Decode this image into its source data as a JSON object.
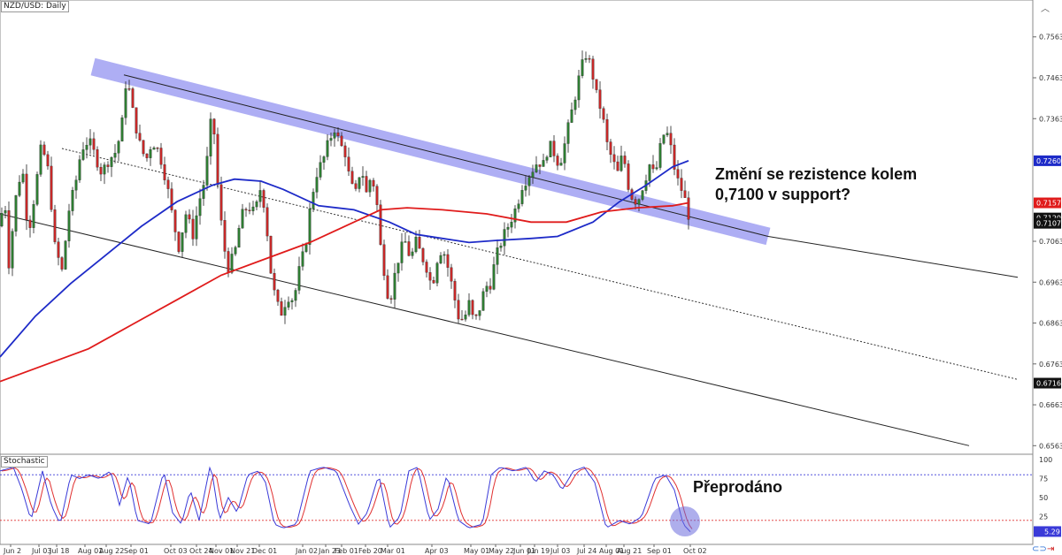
{
  "symbol_label": "NZD/USD: Daily",
  "stochastic_label": "Stochastic",
  "annotation_main": [
    "Změní se rezistence kolem",
    "0,7100 v support?"
  ],
  "annotation_stoch": "Přeprodáno",
  "colors": {
    "up": "#2e7d32",
    "down": "#c62828",
    "ma_fast": "#1e2bc8",
    "ma_slow": "#e01b1b",
    "channel": "#8c8cf0",
    "stoch_k": "#3a3ad8",
    "stoch_d": "#e03030",
    "level_high": "#3a3ad8",
    "level_low": "#e03030"
  },
  "chart_data": {
    "type": "candlestick",
    "title": "NZD/USD: Daily",
    "y_ticks": [
      "0.7563",
      "0.7463",
      "0.7363",
      "0.7260",
      "0.7157",
      "0.7120",
      "0.7107",
      "0.7063",
      "0.6963",
      "0.6863",
      "0.6763",
      "0.6716",
      "0.6663",
      "0.6563"
    ],
    "y_range": [
      0.6555,
      0.761
    ],
    "x_ticks": [
      "Jun 2",
      "Jul 03",
      "Jul 18",
      "Aug 01",
      "Aug 22",
      "Sep 01",
      "Oct 03",
      "Oct 24",
      "Nov 01",
      "Nov 21",
      "Dec 01",
      "Jan 02",
      "Jan 23",
      "Feb 01",
      "Feb 20",
      "Mar 01",
      "Apr 03",
      "May 01",
      "May 22",
      "Jun 01",
      "Jun 19",
      "Jul 03",
      "Jul 24",
      "Aug 01",
      "Aug 21",
      "Sep 01",
      "Oct 02"
    ],
    "price_badges": [
      {
        "label": "0.7260",
        "value": 0.726,
        "color": "#1e2bc8"
      },
      {
        "label": "0.7157",
        "value": 0.7157,
        "color": "#e01b1b"
      },
      {
        "label": "0.7120",
        "value": 0.712,
        "color": "#111111"
      },
      {
        "label": "0.7107",
        "value": 0.7107,
        "color": "#111111"
      },
      {
        "label": "0.6716",
        "value": 0.6716,
        "color": "#111111"
      }
    ],
    "close_path": [
      [
        0,
        0.71
      ],
      [
        5,
        0.718
      ],
      [
        10,
        0.701
      ],
      [
        18,
        0.717
      ],
      [
        25,
        0.725
      ],
      [
        32,
        0.708
      ],
      [
        40,
        0.719
      ],
      [
        47,
        0.73
      ],
      [
        55,
        0.723
      ],
      [
        62,
        0.705
      ],
      [
        70,
        0.699
      ],
      [
        78,
        0.714
      ],
      [
        85,
        0.72
      ],
      [
        92,
        0.729
      ],
      [
        100,
        0.731
      ],
      [
        108,
        0.727
      ],
      [
        115,
        0.723
      ],
      [
        122,
        0.726
      ],
      [
        130,
        0.728
      ],
      [
        137,
        0.733
      ],
      [
        143,
        0.747
      ],
      [
        150,
        0.738
      ],
      [
        158,
        0.73
      ],
      [
        165,
        0.726
      ],
      [
        172,
        0.731
      ],
      [
        180,
        0.728
      ],
      [
        188,
        0.721
      ],
      [
        195,
        0.712
      ],
      [
        202,
        0.705
      ],
      [
        210,
        0.713
      ],
      [
        218,
        0.708
      ],
      [
        225,
        0.716
      ],
      [
        232,
        0.722
      ],
      [
        240,
        0.739
      ],
      [
        246,
        0.72
      ],
      [
        252,
        0.706
      ],
      [
        258,
        0.7
      ],
      [
        265,
        0.703
      ],
      [
        272,
        0.712
      ],
      [
        280,
        0.715
      ],
      [
        288,
        0.713
      ],
      [
        295,
        0.72
      ],
      [
        300,
        0.713
      ],
      [
        306,
        0.699
      ],
      [
        312,
        0.691
      ],
      [
        318,
        0.689
      ],
      [
        325,
        0.693
      ],
      [
        332,
        0.692
      ],
      [
        338,
        0.699
      ],
      [
        345,
        0.705
      ],
      [
        352,
        0.717
      ],
      [
        358,
        0.723
      ],
      [
        365,
        0.726
      ],
      [
        372,
        0.731
      ],
      [
        378,
        0.734
      ],
      [
        384,
        0.73
      ],
      [
        390,
        0.728
      ],
      [
        396,
        0.72
      ],
      [
        402,
        0.718
      ],
      [
        408,
        0.725
      ],
      [
        414,
        0.718
      ],
      [
        420,
        0.723
      ],
      [
        426,
        0.715
      ],
      [
        430,
        0.705
      ],
      [
        435,
        0.698
      ],
      [
        440,
        0.691
      ],
      [
        446,
        0.698
      ],
      [
        452,
        0.704
      ],
      [
        458,
        0.706
      ],
      [
        464,
        0.702
      ],
      [
        470,
        0.706
      ],
      [
        476,
        0.703
      ],
      [
        482,
        0.7
      ],
      [
        488,
        0.695
      ],
      [
        494,
        0.702
      ],
      [
        500,
        0.705
      ],
      [
        506,
        0.7
      ],
      [
        512,
        0.694
      ],
      [
        518,
        0.688
      ],
      [
        524,
        0.687
      ],
      [
        530,
        0.691
      ],
      [
        536,
        0.686
      ],
      [
        542,
        0.69
      ],
      [
        548,
        0.695
      ],
      [
        554,
        0.696
      ],
      [
        560,
        0.702
      ],
      [
        566,
        0.706
      ],
      [
        572,
        0.709
      ],
      [
        578,
        0.712
      ],
      [
        584,
        0.715
      ],
      [
        590,
        0.72
      ],
      [
        596,
        0.722
      ],
      [
        602,
        0.724
      ],
      [
        608,
        0.726
      ],
      [
        614,
        0.725
      ],
      [
        620,
        0.73
      ],
      [
        626,
        0.728
      ],
      [
        632,
        0.725
      ],
      [
        638,
        0.73
      ],
      [
        644,
        0.736
      ],
      [
        650,
        0.742
      ],
      [
        656,
        0.748
      ],
      [
        662,
        0.752
      ],
      [
        668,
        0.749
      ],
      [
        674,
        0.742
      ],
      [
        680,
        0.738
      ],
      [
        686,
        0.73
      ],
      [
        692,
        0.726
      ],
      [
        698,
        0.723
      ],
      [
        704,
        0.728
      ],
      [
        710,
        0.72
      ],
      [
        716,
        0.716
      ],
      [
        722,
        0.717
      ],
      [
        728,
        0.721
      ],
      [
        734,
        0.725
      ],
      [
        740,
        0.722
      ],
      [
        746,
        0.729
      ],
      [
        752,
        0.734
      ],
      [
        758,
        0.729
      ],
      [
        764,
        0.722
      ],
      [
        770,
        0.719
      ],
      [
        776,
        0.715
      ],
      [
        780,
        0.7107
      ]
    ],
    "ma_fast": [
      [
        0,
        0.678
      ],
      [
        40,
        0.688
      ],
      [
        80,
        0.696
      ],
      [
        120,
        0.703
      ],
      [
        160,
        0.71
      ],
      [
        200,
        0.716
      ],
      [
        240,
        0.72
      ],
      [
        265,
        0.7215
      ],
      [
        295,
        0.721
      ],
      [
        320,
        0.719
      ],
      [
        360,
        0.715
      ],
      [
        400,
        0.714
      ],
      [
        440,
        0.711
      ],
      [
        470,
        0.708
      ],
      [
        500,
        0.707
      ],
      [
        530,
        0.706
      ],
      [
        560,
        0.7065
      ],
      [
        600,
        0.707
      ],
      [
        630,
        0.7075
      ],
      [
        670,
        0.711
      ],
      [
        700,
        0.716
      ],
      [
        730,
        0.72
      ],
      [
        760,
        0.7245
      ],
      [
        778,
        0.726
      ]
    ],
    "ma_slow": [
      [
        0,
        0.672
      ],
      [
        50,
        0.676
      ],
      [
        100,
        0.68
      ],
      [
        150,
        0.686
      ],
      [
        200,
        0.692
      ],
      [
        250,
        0.698
      ],
      [
        300,
        0.702
      ],
      [
        350,
        0.706
      ],
      [
        400,
        0.711
      ],
      [
        430,
        0.714
      ],
      [
        460,
        0.7145
      ],
      [
        500,
        0.714
      ],
      [
        550,
        0.713
      ],
      [
        600,
        0.711
      ],
      [
        640,
        0.711
      ],
      [
        680,
        0.7135
      ],
      [
        720,
        0.7145
      ],
      [
        760,
        0.715
      ],
      [
        778,
        0.7157
      ]
    ],
    "channel_band": {
      "from": [
        105,
        0.749
      ],
      "to": [
        868,
        0.7075
      ]
    },
    "channel_line_upper": {
      "from": [
        140,
        0.747
      ],
      "to": [
        868,
        0.7075
      ]
    },
    "channel_line_lower": {
      "from": [
        0,
        0.713
      ],
      "to": [
        1150,
        0.6975
      ]
    },
    "channel_mid": {
      "from": [
        70,
        0.729
      ],
      "to": [
        1150,
        0.6725
      ]
    },
    "channel_bottom": {
      "from": [
        0,
        0.713
      ],
      "to": [
        1095,
        0.6563
      ]
    },
    "stochastic": {
      "y_ticks": [
        "100",
        "75",
        "50",
        "25",
        "5.29"
      ],
      "levels": [
        80,
        20
      ],
      "current": 5.29,
      "k": [
        [
          0,
          85
        ],
        [
          15,
          90
        ],
        [
          25,
          60
        ],
        [
          35,
          20
        ],
        [
          48,
          85
        ],
        [
          58,
          40
        ],
        [
          68,
          15
        ],
        [
          80,
          80
        ],
        [
          90,
          75
        ],
        [
          100,
          80
        ],
        [
          112,
          75
        ],
        [
          125,
          85
        ],
        [
          135,
          40
        ],
        [
          145,
          80
        ],
        [
          155,
          20
        ],
        [
          170,
          15
        ],
        [
          185,
          85
        ],
        [
          195,
          30
        ],
        [
          205,
          15
        ],
        [
          215,
          60
        ],
        [
          225,
          20
        ],
        [
          238,
          95
        ],
        [
          248,
          20
        ],
        [
          258,
          50
        ],
        [
          268,
          30
        ],
        [
          280,
          80
        ],
        [
          292,
          85
        ],
        [
          300,
          70
        ],
        [
          310,
          15
        ],
        [
          320,
          10
        ],
        [
          335,
          15
        ],
        [
          350,
          85
        ],
        [
          365,
          90
        ],
        [
          380,
          85
        ],
        [
          395,
          40
        ],
        [
          405,
          15
        ],
        [
          415,
          30
        ],
        [
          428,
          80
        ],
        [
          440,
          10
        ],
        [
          452,
          25
        ],
        [
          462,
          85
        ],
        [
          472,
          90
        ],
        [
          485,
          20
        ],
        [
          495,
          35
        ],
        [
          505,
          80
        ],
        [
          518,
          20
        ],
        [
          530,
          10
        ],
        [
          545,
          15
        ],
        [
          555,
          80
        ],
        [
          565,
          90
        ],
        [
          580,
          85
        ],
        [
          595,
          90
        ],
        [
          605,
          70
        ],
        [
          615,
          85
        ],
        [
          625,
          80
        ],
        [
          635,
          60
        ],
        [
          648,
          85
        ],
        [
          660,
          90
        ],
        [
          672,
          70
        ],
        [
          685,
          10
        ],
        [
          700,
          20
        ],
        [
          712,
          15
        ],
        [
          725,
          25
        ],
        [
          740,
          75
        ],
        [
          752,
          80
        ],
        [
          762,
          60
        ],
        [
          772,
          15
        ],
        [
          780,
          5
        ]
      ]
    }
  }
}
